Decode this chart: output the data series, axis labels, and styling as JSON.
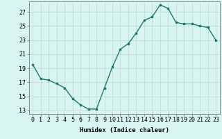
{
  "x": [
    0,
    1,
    2,
    3,
    4,
    5,
    6,
    7,
    8,
    9,
    10,
    11,
    12,
    13,
    14,
    15,
    16,
    17,
    18,
    19,
    20,
    21,
    22,
    23
  ],
  "y": [
    19.5,
    17.5,
    17.3,
    16.8,
    16.2,
    14.7,
    13.8,
    13.2,
    13.2,
    16.2,
    19.2,
    21.7,
    22.5,
    24.0,
    25.8,
    26.3,
    28.0,
    27.5,
    25.5,
    25.3,
    25.3,
    25.0,
    24.8,
    23.0
  ],
  "line_color": "#1a7a6e",
  "bg_color": "#d8f5f0",
  "grid_color": "#c0ddd8",
  "xlabel": "Humidex (Indice chaleur)",
  "xlim": [
    -0.5,
    23.5
  ],
  "ylim": [
    12.5,
    28.5
  ],
  "yticks": [
    13,
    15,
    17,
    19,
    21,
    23,
    25,
    27
  ],
  "xticks": [
    0,
    1,
    2,
    3,
    4,
    5,
    6,
    7,
    8,
    9,
    10,
    11,
    12,
    13,
    14,
    15,
    16,
    17,
    18,
    19,
    20,
    21,
    22,
    23
  ],
  "xlabel_fontsize": 6.5,
  "tick_fontsize": 6.0,
  "marker_size": 2.0,
  "line_width": 1.0
}
